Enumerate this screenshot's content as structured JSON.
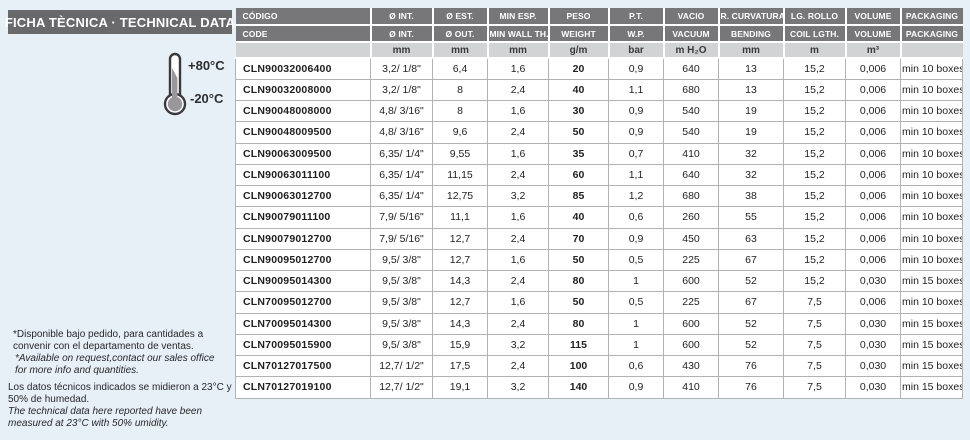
{
  "header": {
    "title": "FICHA TÈCNICA · TECHNICAL DATA",
    "temp_max": "+80°C",
    "temp_min": "-20°C"
  },
  "notes": {
    "es_availability": "*Disponible bajo pedido, para cantidades a\nconvenir con el departamento de ventas.",
    "en_availability": "*Available on request,contact our sales office\nfor more info and quantities.",
    "es_measurement": "Los datos técnicos indicados se midieron a 23°C y\n50% de humedad.",
    "en_measurement": "The technical data here reported have been\nmeasured at 23°C with 50% umidity."
  },
  "table": {
    "header_row_es": [
      "CÓDIGO",
      "Ø INT.",
      "Ø EST.",
      "MIN ESP.",
      "PESO",
      "P.T.",
      "VACIO",
      "R. CURVATURA",
      "LG. ROLLO",
      "VOLUME",
      "PACKAGING"
    ],
    "header_row_en": [
      "CODE",
      "Ø INT.",
      "Ø OUT.",
      "MIN WALL TH.",
      "WEIGHT",
      "W.P.",
      "VACUUM",
      "BENDING",
      "COIL LGTH.",
      "VOLUME",
      "PACKAGING"
    ],
    "units_row": [
      "",
      "mm",
      "mm",
      "mm",
      "g/m",
      "bar",
      "m H₂O",
      "mm",
      "m",
      "m³",
      ""
    ],
    "col_keys": [
      "code",
      "diameter-int",
      "diameter-out",
      "min-wall-th",
      "weight",
      "working-pressure",
      "vacuum",
      "bending-radius",
      "coil-length",
      "volume",
      "packaging"
    ],
    "rows": [
      [
        "CLN90032006400",
        "3,2/ 1/8\"",
        "6,4",
        "1,6",
        "20",
        "0,9",
        "640",
        "13",
        "15,2",
        "0,006",
        "min 10 boxes"
      ],
      [
        "CLN90032008000",
        "3,2/ 1/8\"",
        "8",
        "2,4",
        "40",
        "1,1",
        "680",
        "13",
        "15,2",
        "0,006",
        "min 10 boxes"
      ],
      [
        "CLN90048008000",
        "4,8/ 3/16\"",
        "8",
        "1,6",
        "30",
        "0,9",
        "540",
        "19",
        "15,2",
        "0,006",
        "min 10 boxes"
      ],
      [
        "CLN90048009500",
        "4,8/ 3/16\"",
        "9,6",
        "2,4",
        "50",
        "0,9",
        "540",
        "19",
        "15,2",
        "0,006",
        "min 10 boxes"
      ],
      [
        "CLN90063009500",
        "6,35/ 1/4\"",
        "9,55",
        "1,6",
        "35",
        "0,7",
        "410",
        "32",
        "15,2",
        "0,006",
        "min 10 boxes"
      ],
      [
        "CLN90063011100",
        "6,35/ 1/4\"",
        "11,15",
        "2,4",
        "60",
        "1,1",
        "640",
        "32",
        "15,2",
        "0,006",
        "min 10 boxes"
      ],
      [
        "CLN90063012700",
        "6,35/ 1/4\"",
        "12,75",
        "3,2",
        "85",
        "1,2",
        "680",
        "38",
        "15,2",
        "0,006",
        "min 10 boxes"
      ],
      [
        "CLN90079011100",
        "7,9/ 5/16\"",
        "11,1",
        "1,6",
        "40",
        "0,6",
        "260",
        "55",
        "15,2",
        "0,006",
        "min 10 boxes"
      ],
      [
        "CLN90079012700",
        "7,9/ 5/16\"",
        "12,7",
        "2,4",
        "70",
        "0,9",
        "450",
        "63",
        "15,2",
        "0,006",
        "min 10 boxes"
      ],
      [
        "CLN90095012700",
        "9,5/ 3/8\"",
        "12,7",
        "1,6",
        "50",
        "0,5",
        "225",
        "67",
        "15,2",
        "0,006",
        "min 10 boxes"
      ],
      [
        "CLN90095014300",
        "9,5/ 3/8\"",
        "14,3",
        "2,4",
        "80",
        "1",
        "600",
        "52",
        "15,2",
        "0,030",
        "min 15 boxes"
      ],
      [
        "CLN70095012700",
        "9,5/ 3/8\"",
        "12,7",
        "1,6",
        "50",
        "0,5",
        "225",
        "67",
        "7,5",
        "0,006",
        "min 10 boxes"
      ],
      [
        "CLN70095014300",
        "9,5/ 3/8\"",
        "14,3",
        "2,4",
        "80",
        "1",
        "600",
        "52",
        "7,5",
        "0,030",
        "min 15 boxes"
      ],
      [
        "CLN70095015900",
        "9,5/ 3/8\"",
        "15,9",
        "3,2",
        "115",
        "1",
        "600",
        "52",
        "7,5",
        "0,030",
        "min 15 boxes"
      ],
      [
        "CLN70127017500",
        "12,7/ 1/2\"",
        "17,5",
        "2,4",
        "100",
        "0,6",
        "430",
        "76",
        "7,5",
        "0,030",
        "min 15 boxes"
      ],
      [
        "CLN70127019100",
        "12,7/ 1/2\"",
        "19,1",
        "3,2",
        "140",
        "0,9",
        "410",
        "76",
        "7,5",
        "0,030",
        "min 15 boxes"
      ]
    ]
  },
  "colors": {
    "page_bg": "#e7eff7",
    "title_bar": "#69696b",
    "table_header": "#77777a",
    "units_row": "#d2d3d5",
    "grid_line": "#b2b2b4"
  }
}
